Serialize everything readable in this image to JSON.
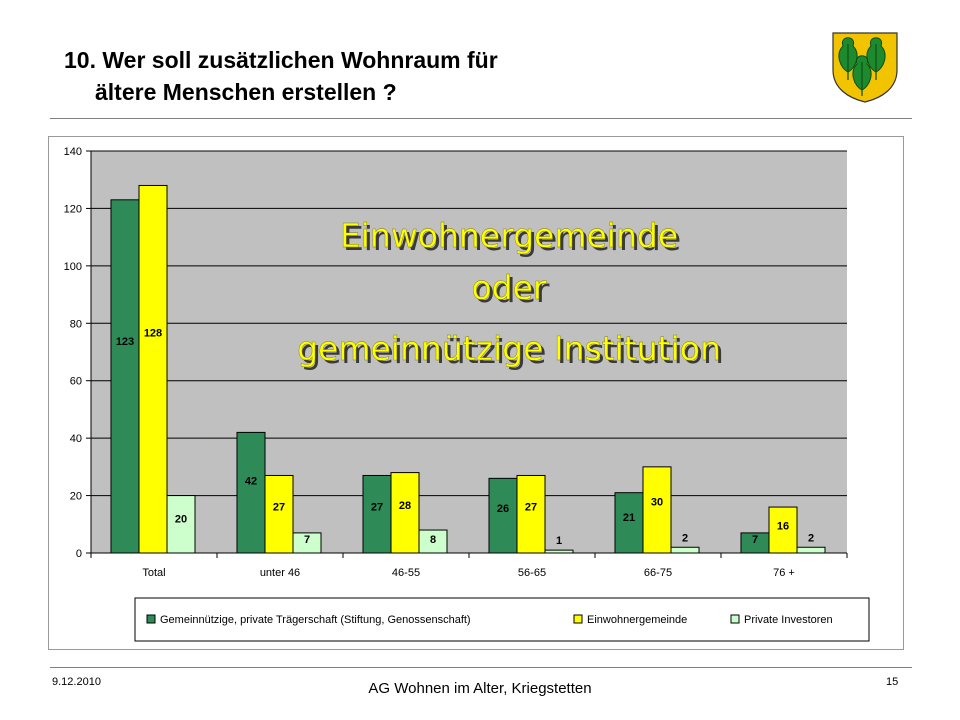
{
  "slide": {
    "title_line1": "10. Wer soll zusätzlichen Wohnraum für",
    "title_line2": "ältere Menschen erstellen ?",
    "overlay_lines": [
      "Einwohnergemeinde",
      "oder",
      "gemeinnützige Institution"
    ],
    "overlay_color": "#ffff00"
  },
  "footer": {
    "date": "9.12.2010",
    "center": "AG Wohnen im Alter, Kriegstetten",
    "page": "15"
  },
  "chart_data": {
    "type": "bar",
    "categories": [
      "Total",
      "unter 46",
      "46-55",
      "56-65",
      "66-75",
      "76 +"
    ],
    "series": [
      {
        "name": "Gemeinnützige, private Trägerschaft (Stiftung, Genossenschaft)",
        "values": [
          123,
          42,
          27,
          26,
          21,
          7
        ],
        "color": "#2e8b57"
      },
      {
        "name": "Einwohnergemeinde",
        "values": [
          128,
          27,
          28,
          27,
          30,
          16
        ],
        "color": "#ffff00"
      },
      {
        "name": "Private Investoren",
        "values": [
          20,
          7,
          8,
          1,
          2,
          2
        ],
        "color": "#ccffcc"
      }
    ],
    "y_ticks": [
      0,
      20,
      40,
      60,
      80,
      100,
      120,
      140
    ],
    "ylim": [
      0,
      140
    ],
    "plot_background": "#c0c0c0",
    "grid": true,
    "legend_position": "bottom"
  }
}
